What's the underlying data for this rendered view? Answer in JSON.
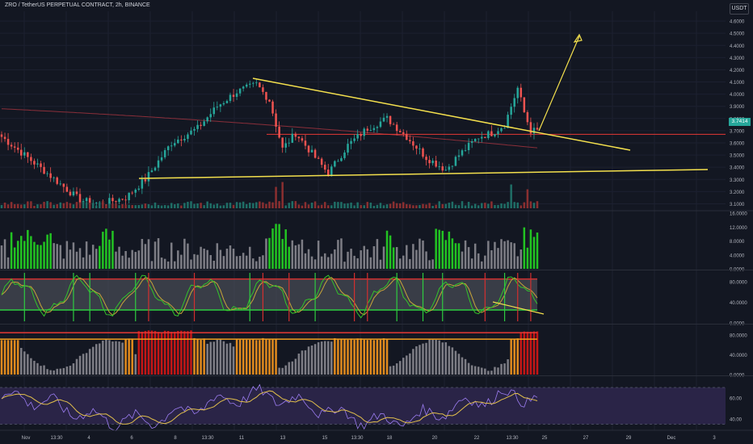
{
  "header": {
    "title": "ZRO / TetherUS PERPETUAL CONTRACT, 2h, BINANCE"
  },
  "currency_badge": "USDT",
  "last_price": "3.7414",
  "colors": {
    "background": "#131722",
    "up": "#26a69a",
    "down": "#ef5350",
    "trendline": "#f4e04d",
    "resistance": "#e53935",
    "ma": "#8b2f3a",
    "green_bar": "#22c322",
    "grey_bar": "#7d7d85",
    "orange_bar": "#e08a1e",
    "red_bar": "#c41616",
    "rsi_line": "#9b7cf0",
    "rsi_ma": "#e3c04c",
    "axis_text": "#b2b5be"
  },
  "x_axis": [
    "Nov",
    "13:30",
    "4",
    "6",
    "8",
    "13:30",
    "11",
    "13",
    "15",
    "13:30",
    "18",
    "20",
    "22",
    "13:30",
    "25",
    "27",
    "29",
    "Dec",
    "3"
  ],
  "chart_data": [
    {
      "type": "candlestick",
      "name": "price",
      "y_ticks": [
        "4.6000",
        "4.5000",
        "4.4000",
        "4.3000",
        "4.2000",
        "4.1000",
        "4.0000",
        "3.9000",
        "3.8000",
        "3.7000",
        "3.6000",
        "3.5000",
        "3.4000",
        "3.3000",
        "3.2000",
        "3.1000"
      ],
      "ylim": [
        3.05,
        4.68
      ],
      "anchors": [
        [
          0,
          3.65
        ],
        [
          14,
          3.35
        ],
        [
          24,
          3.13
        ],
        [
          30,
          3.1
        ],
        [
          38,
          3.15
        ],
        [
          44,
          3.3
        ],
        [
          52,
          3.6
        ],
        [
          60,
          3.72
        ],
        [
          66,
          3.9
        ],
        [
          72,
          4.02
        ],
        [
          78,
          4.08
        ],
        [
          82,
          3.95
        ],
        [
          86,
          3.55
        ],
        [
          90,
          3.68
        ],
        [
          96,
          3.48
        ],
        [
          100,
          3.35
        ],
        [
          106,
          3.58
        ],
        [
          112,
          3.72
        ],
        [
          118,
          3.8
        ],
        [
          124,
          3.65
        ],
        [
          130,
          3.48
        ],
        [
          136,
          3.38
        ],
        [
          140,
          3.5
        ],
        [
          146,
          3.65
        ],
        [
          150,
          3.68
        ],
        [
          154,
          3.75
        ],
        [
          158,
          4.05
        ],
        [
          160,
          3.85
        ],
        [
          162,
          3.7
        ]
      ],
      "volume_spikes": [
        [
          84,
          0.55
        ],
        [
          86,
          0.75
        ],
        [
          156,
          0.65
        ],
        [
          161,
          0.45
        ]
      ],
      "trend_upper": [
        [
          4.1,
          "start"
        ],
        [
          3.48,
          "end"
        ]
      ],
      "trend_lower": [
        [
          3.29,
          "start"
        ],
        [
          3.35,
          "end"
        ]
      ],
      "resistance": 3.67
    },
    {
      "type": "bar",
      "name": "volume-momentum",
      "y_ticks": [
        "16.0000",
        "12.0000",
        "8.0000",
        "4.0000",
        "0.0000"
      ],
      "ylim": [
        0,
        16.5
      ]
    },
    {
      "type": "line",
      "name": "stochastic",
      "y_ticks": [
        "80.0000",
        "40.0000",
        "0.0000"
      ],
      "ylim": [
        0,
        100
      ],
      "bands": [
        25,
        85
      ]
    },
    {
      "type": "area",
      "name": "oscillator",
      "y_ticks": [
        "80.0000",
        "40.0000",
        "0.0000"
      ],
      "ylim": [
        0,
        100
      ],
      "levels": [
        72,
        85
      ]
    },
    {
      "type": "line",
      "name": "rsi",
      "y_ticks": [
        "60.00",
        "40.00"
      ],
      "ylim": [
        30,
        80
      ],
      "band": [
        35,
        70
      ]
    }
  ]
}
